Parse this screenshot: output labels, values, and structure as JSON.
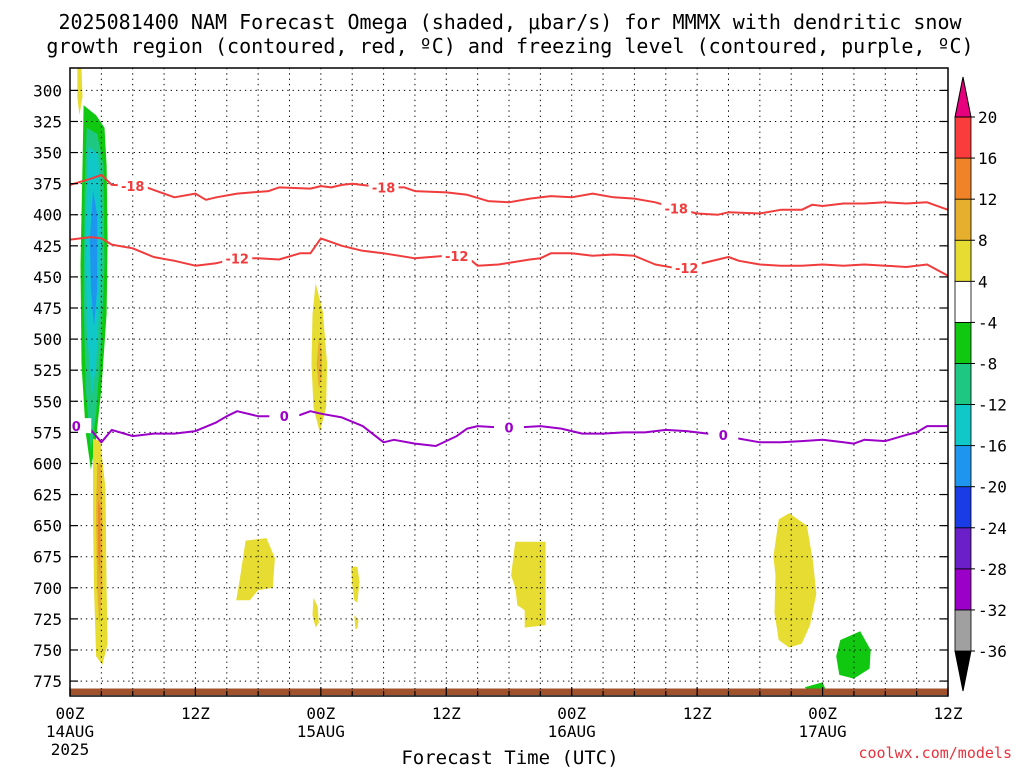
{
  "chart_data": {
    "type": "contour",
    "title_line1": "2025081400 NAM Forecast Omega (shaded, μbar/s) for MMMX with dendritic snow",
    "title_line2": "growth region (contoured, red, ºC) and freezing level (contoured, purple, ºC)",
    "xlabel": "Forecast Time (UTC)",
    "credit": "coolwx.com/models",
    "x_ticks": [
      {
        "hour": 0,
        "label": "00Z",
        "sub": "14AUG",
        "sub2": "2025"
      },
      {
        "hour": 12,
        "label": "12Z",
        "sub": "",
        "sub2": ""
      },
      {
        "hour": 24,
        "label": "00Z",
        "sub": "15AUG",
        "sub2": ""
      },
      {
        "hour": 36,
        "label": "12Z",
        "sub": "",
        "sub2": ""
      },
      {
        "hour": 48,
        "label": "00Z",
        "sub": "16AUG",
        "sub2": ""
      },
      {
        "hour": 60,
        "label": "12Z",
        "sub": "",
        "sub2": ""
      },
      {
        "hour": 72,
        "label": "00Z",
        "sub": "17AUG",
        "sub2": ""
      },
      {
        "hour": 84,
        "label": "12Z",
        "sub": "",
        "sub2": ""
      }
    ],
    "xlim": [
      0,
      84
    ],
    "y_ticks": [
      300,
      325,
      350,
      375,
      400,
      425,
      450,
      475,
      500,
      525,
      550,
      575,
      600,
      625,
      650,
      675,
      700,
      725,
      750,
      775
    ],
    "ylim": [
      282,
      787
    ],
    "y_unit": "hPa",
    "colorbar": {
      "levels": [
        -36,
        -32,
        -28,
        -24,
        -20,
        -16,
        -12,
        -8,
        -4,
        4,
        8,
        12,
        16,
        20
      ],
      "colors": [
        "#000000",
        "#a0a0a0",
        "#9b00c8",
        "#6a1fc8",
        "#1a3ce6",
        "#1e96f0",
        "#11c8c8",
        "#1ec882",
        "#10c810",
        "#ffffff",
        "#e6dc32",
        "#e6af2d",
        "#f08228",
        "#fa3c3c",
        "#e6007d"
      ]
    },
    "contour_dendritic_snow": [
      {
        "level": -18,
        "label": "-18",
        "color": "#f03c3c",
        "points": [
          [
            0,
            376
          ],
          [
            2,
            371
          ],
          [
            3,
            368
          ],
          [
            4,
            376
          ],
          [
            7,
            377
          ],
          [
            8,
            380
          ],
          [
            10,
            386
          ],
          [
            12,
            383
          ],
          [
            13,
            388
          ],
          [
            14,
            386
          ],
          [
            16,
            383
          ],
          [
            19,
            381
          ],
          [
            20,
            378
          ],
          [
            23,
            379
          ],
          [
            24,
            377
          ],
          [
            25,
            378
          ],
          [
            26,
            376
          ],
          [
            27,
            375
          ],
          [
            30,
            378
          ],
          [
            32,
            378
          ],
          [
            33,
            381
          ],
          [
            36,
            382
          ],
          [
            38,
            384
          ],
          [
            40,
            389
          ],
          [
            42,
            390
          ],
          [
            44,
            387
          ],
          [
            46,
            385
          ],
          [
            48,
            386
          ],
          [
            50,
            383
          ],
          [
            52,
            386
          ],
          [
            54,
            387
          ],
          [
            56,
            390
          ],
          [
            58,
            395
          ],
          [
            60,
            399
          ],
          [
            62,
            400
          ],
          [
            63,
            398
          ],
          [
            66,
            399
          ],
          [
            68,
            396
          ],
          [
            70,
            396
          ],
          [
            71,
            392
          ],
          [
            72,
            393
          ],
          [
            74,
            391
          ],
          [
            76,
            391
          ],
          [
            78,
            390
          ],
          [
            80,
            391
          ],
          [
            82,
            390
          ],
          [
            84,
            396
          ]
        ]
      },
      {
        "level": -12,
        "label": "-12",
        "color": "#f03c3c",
        "points": [
          [
            0,
            420
          ],
          [
            2,
            418
          ],
          [
            3,
            419
          ],
          [
            4,
            424
          ],
          [
            6,
            427
          ],
          [
            8,
            434
          ],
          [
            10,
            437
          ],
          [
            12,
            441
          ],
          [
            14,
            439
          ],
          [
            16,
            435
          ],
          [
            18,
            435
          ],
          [
            20,
            436
          ],
          [
            22,
            431
          ],
          [
            23,
            431
          ],
          [
            24,
            419
          ],
          [
            25,
            422
          ],
          [
            26,
            425
          ],
          [
            28,
            429
          ],
          [
            30,
            431
          ],
          [
            33,
            435
          ],
          [
            36,
            433
          ],
          [
            38,
            434
          ],
          [
            39,
            441
          ],
          [
            41,
            440
          ],
          [
            44,
            436
          ],
          [
            45,
            435
          ],
          [
            46,
            431
          ],
          [
            48,
            431
          ],
          [
            50,
            433
          ],
          [
            52,
            432
          ],
          [
            54,
            433
          ],
          [
            56,
            440
          ],
          [
            58,
            443
          ],
          [
            60,
            440
          ],
          [
            62,
            436
          ],
          [
            63,
            434
          ],
          [
            64,
            437
          ],
          [
            66,
            440
          ],
          [
            68,
            441
          ],
          [
            70,
            441
          ],
          [
            72,
            440
          ],
          [
            74,
            441
          ],
          [
            76,
            440
          ],
          [
            78,
            441
          ],
          [
            80,
            442
          ],
          [
            82,
            440
          ],
          [
            84,
            449
          ]
        ]
      }
    ],
    "contour_freezing_level": {
      "level": 0,
      "label": "0",
      "color": "#9b00c8",
      "points": [
        [
          0,
          570
        ],
        [
          2,
          573
        ],
        [
          3,
          583
        ],
        [
          4,
          573
        ],
        [
          6,
          578
        ],
        [
          8,
          576
        ],
        [
          10,
          576
        ],
        [
          12,
          574
        ],
        [
          14,
          567
        ],
        [
          15,
          562
        ],
        [
          16,
          558
        ],
        [
          18,
          562
        ],
        [
          20,
          562
        ],
        [
          22,
          561
        ],
        [
          23,
          558
        ],
        [
          24,
          560
        ],
        [
          26,
          563
        ],
        [
          28,
          570
        ],
        [
          30,
          583
        ],
        [
          31,
          581
        ],
        [
          33,
          584
        ],
        [
          35,
          586
        ],
        [
          37,
          578
        ],
        [
          38,
          572
        ],
        [
          39,
          570
        ],
        [
          41,
          571
        ],
        [
          43,
          571
        ],
        [
          45,
          570
        ],
        [
          47,
          572
        ],
        [
          49,
          576
        ],
        [
          51,
          576
        ],
        [
          53,
          575
        ],
        [
          55,
          575
        ],
        [
          57,
          573
        ],
        [
          59,
          574
        ],
        [
          62,
          577
        ],
        [
          64,
          580
        ],
        [
          66,
          583
        ],
        [
          68,
          583
        ],
        [
          70,
          582
        ],
        [
          72,
          581
        ],
        [
          74,
          583
        ],
        [
          75,
          584
        ],
        [
          76,
          581
        ],
        [
          78,
          582
        ],
        [
          80,
          577
        ],
        [
          81,
          575
        ],
        [
          82,
          570
        ],
        [
          84,
          570
        ]
      ]
    },
    "omega_shaded": [
      {
        "value": 4,
        "color": "#e6dc32",
        "points": [
          [
            0.7,
            282
          ],
          [
            1.1,
            282
          ],
          [
            1.2,
            305
          ],
          [
            0.9,
            320
          ],
          [
            0.7,
            305
          ]
        ]
      },
      {
        "value": -8,
        "color": "#10c810",
        "points": [
          [
            1.3,
            312
          ],
          [
            2.5,
            320
          ],
          [
            3.3,
            330
          ],
          [
            3.5,
            360
          ],
          [
            3.6,
            420
          ],
          [
            3.5,
            480
          ],
          [
            3.0,
            540
          ],
          [
            2.5,
            580
          ],
          [
            2.0,
            605
          ],
          [
            1.5,
            575
          ],
          [
            1.1,
            520
          ],
          [
            1.0,
            440
          ],
          [
            1.2,
            360
          ]
        ]
      },
      {
        "value": -12,
        "color": "#1ec882",
        "points": [
          [
            1.6,
            330
          ],
          [
            2.6,
            335
          ],
          [
            3.2,
            360
          ],
          [
            3.3,
            440
          ],
          [
            3.0,
            500
          ],
          [
            2.5,
            560
          ],
          [
            2.0,
            590
          ],
          [
            1.5,
            540
          ],
          [
            1.3,
            470
          ],
          [
            1.4,
            380
          ]
        ]
      },
      {
        "value": -16,
        "color": "#11c8c8",
        "points": [
          [
            1.8,
            345
          ],
          [
            2.7,
            352
          ],
          [
            3.0,
            400
          ],
          [
            2.9,
            460
          ],
          [
            2.5,
            520
          ],
          [
            2.1,
            545
          ],
          [
            1.6,
            490
          ],
          [
            1.5,
            420
          ],
          [
            1.6,
            380
          ]
        ]
      },
      {
        "value": -20,
        "color": "#1e96f0",
        "points": [
          [
            2.2,
            380
          ],
          [
            2.6,
            400
          ],
          [
            2.6,
            460
          ],
          [
            2.3,
            490
          ],
          [
            2.0,
            460
          ],
          [
            1.9,
            420
          ]
        ]
      },
      {
        "value": 4,
        "color": "#e6dc32",
        "points": [
          [
            2.2,
            580
          ],
          [
            2.9,
            582
          ],
          [
            3.4,
            620
          ],
          [
            3.5,
            700
          ],
          [
            3.6,
            745
          ],
          [
            3.1,
            762
          ],
          [
            2.5,
            755
          ],
          [
            2.3,
            700
          ],
          [
            2.2,
            640
          ]
        ]
      },
      {
        "value": 8,
        "color": "#e6af2d",
        "points": [
          [
            2.6,
            600
          ],
          [
            3.0,
            600
          ],
          [
            3.1,
            640
          ],
          [
            3.1,
            700
          ],
          [
            2.8,
            730
          ],
          [
            2.6,
            700
          ],
          [
            2.5,
            640
          ]
        ]
      },
      {
        "value": 12,
        "color": "#f08228",
        "points": [
          [
            2.7,
            630
          ],
          [
            2.9,
            635
          ],
          [
            2.9,
            670
          ],
          [
            2.8,
            690
          ],
          [
            2.7,
            670
          ]
        ]
      },
      {
        "value": 4,
        "color": "#e6dc32",
        "points": [
          [
            23.5,
            455
          ],
          [
            24.2,
            478
          ],
          [
            24.6,
            520
          ],
          [
            24.5,
            555
          ],
          [
            23.9,
            575
          ],
          [
            23.3,
            555
          ],
          [
            23.1,
            520
          ],
          [
            23.2,
            480
          ]
        ]
      },
      {
        "value": 8,
        "color": "#e6af2d",
        "points": [
          [
            23.8,
            500
          ],
          [
            24.1,
            510
          ],
          [
            24.1,
            530
          ],
          [
            23.8,
            540
          ],
          [
            23.6,
            520
          ]
        ]
      },
      {
        "value": 4,
        "color": "#e6dc32",
        "points": [
          [
            16.8,
            662
          ],
          [
            18.8,
            660
          ],
          [
            19.6,
            676
          ],
          [
            19.4,
            700
          ],
          [
            18.0,
            702
          ],
          [
            17.2,
            710
          ],
          [
            15.9,
            710
          ],
          [
            16.3,
            690
          ]
        ]
      },
      {
        "value": 4,
        "color": "#e6dc32",
        "points": [
          [
            23.3,
            708
          ],
          [
            23.7,
            715
          ],
          [
            23.8,
            728
          ],
          [
            23.5,
            732
          ],
          [
            23.2,
            722
          ]
        ]
      },
      {
        "value": 4,
        "color": "#e6dc32",
        "points": [
          [
            26.9,
            683
          ],
          [
            27.5,
            683
          ],
          [
            27.7,
            695
          ],
          [
            27.5,
            712
          ],
          [
            27.2,
            710
          ],
          [
            27.0,
            697
          ]
        ]
      },
      {
        "value": 4,
        "color": "#e6dc32",
        "points": [
          [
            27.2,
            722
          ],
          [
            27.6,
            726
          ],
          [
            27.5,
            733
          ],
          [
            27.3,
            733
          ]
        ]
      },
      {
        "value": 4,
        "color": "#e6dc32",
        "points": [
          [
            42.6,
            663
          ],
          [
            45.5,
            663
          ],
          [
            45.5,
            730
          ],
          [
            43.5,
            732
          ],
          [
            43.5,
            718
          ],
          [
            42.8,
            714
          ],
          [
            42.6,
            700
          ],
          [
            42.2,
            690
          ]
        ]
      },
      {
        "value": 4,
        "color": "#e6dc32",
        "points": [
          [
            67.8,
            645
          ],
          [
            68.8,
            640
          ],
          [
            70.5,
            650
          ],
          [
            71.1,
            680
          ],
          [
            71.4,
            705
          ],
          [
            70.8,
            730
          ],
          [
            70.0,
            745
          ],
          [
            68.8,
            748
          ],
          [
            67.8,
            742
          ],
          [
            67.4,
            720
          ],
          [
            67.5,
            690
          ],
          [
            67.3,
            675
          ]
        ]
      },
      {
        "value": -4,
        "color": "#10c810",
        "points": [
          [
            73.7,
            742
          ],
          [
            75.6,
            735
          ],
          [
            76.6,
            750
          ],
          [
            76.5,
            765
          ],
          [
            75.0,
            773
          ],
          [
            73.6,
            770
          ],
          [
            73.3,
            755
          ]
        ]
      },
      {
        "value": -4,
        "color": "#10c810",
        "points": [
          [
            70.3,
            780
          ],
          [
            72.0,
            776
          ],
          [
            72.3,
            782
          ],
          [
            70.8,
            785
          ]
        ]
      }
    ],
    "terrain": {
      "color": "#a0522d",
      "pressure": 781,
      "label": ""
    }
  }
}
